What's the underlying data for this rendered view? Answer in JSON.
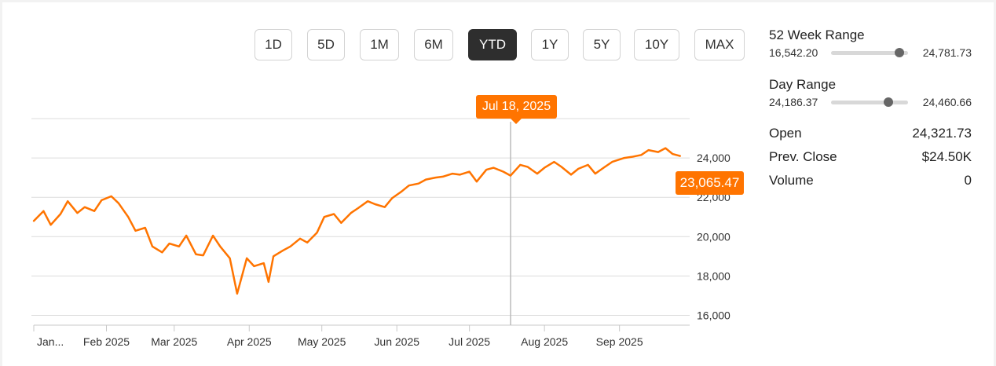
{
  "range_buttons": [
    {
      "label": "1D",
      "active": false
    },
    {
      "label": "5D",
      "active": false
    },
    {
      "label": "1M",
      "active": false
    },
    {
      "label": "6M",
      "active": false
    },
    {
      "label": "YTD",
      "active": true
    },
    {
      "label": "1Y",
      "active": false
    },
    {
      "label": "5Y",
      "active": false
    },
    {
      "label": "10Y",
      "active": false
    },
    {
      "label": "MAX",
      "active": false
    }
  ],
  "tooltip": {
    "date": "Jul 18, 2025"
  },
  "last_price_label": "23,065.47",
  "stats": {
    "week52": {
      "title": "52 Week Range",
      "low": "16,542.20",
      "high": "24,781.73",
      "position": 0.89
    },
    "day": {
      "title": "Day Range",
      "low": "24,186.37",
      "high": "24,460.66",
      "position": 0.74
    },
    "rows": [
      {
        "label": "Open",
        "value": "24,321.73"
      },
      {
        "label": "Prev. Close",
        "value": "$24.50K"
      },
      {
        "label": "Volume",
        "value": "0"
      }
    ]
  },
  "colors": {
    "line": "#ff7400",
    "active_button": "#2e2e2e"
  },
  "chart_data": {
    "type": "line",
    "x_tick_labels": [
      "Jan...",
      "Feb 2025",
      "Mar 2025",
      "Apr 2025",
      "May 2025",
      "Jun 2025",
      "Jul 2025",
      "Aug 2025",
      "Sep 2025"
    ],
    "y_tick_labels": [
      "16,000",
      "18,000",
      "20,000",
      "22,000",
      "24,000"
    ],
    "ylim": [
      15500,
      26000
    ],
    "crosshair_date": "2025-07-18",
    "series": [
      {
        "x": [
          "2025-01-02",
          "2025-01-06",
          "2025-01-09",
          "2025-01-13",
          "2025-01-16",
          "2025-01-20",
          "2025-01-23",
          "2025-01-27",
          "2025-01-30",
          "2025-02-03",
          "2025-02-06",
          "2025-02-10",
          "2025-02-13",
          "2025-02-17",
          "2025-02-20",
          "2025-02-24",
          "2025-02-27",
          "2025-03-03",
          "2025-03-06",
          "2025-03-10",
          "2025-03-13",
          "2025-03-17",
          "2025-03-20",
          "2025-03-24",
          "2025-03-27",
          "2025-03-31",
          "2025-04-03",
          "2025-04-07",
          "2025-04-09",
          "2025-04-11",
          "2025-04-15",
          "2025-04-18",
          "2025-04-22",
          "2025-04-25",
          "2025-04-29",
          "2025-05-02",
          "2025-05-06",
          "2025-05-09",
          "2025-05-13",
          "2025-05-16",
          "2025-05-20",
          "2025-05-23",
          "2025-05-27",
          "2025-05-30",
          "2025-06-03",
          "2025-06-06",
          "2025-06-10",
          "2025-06-13",
          "2025-06-17",
          "2025-06-20",
          "2025-06-24",
          "2025-06-27",
          "2025-07-01",
          "2025-07-04",
          "2025-07-08",
          "2025-07-11",
          "2025-07-15",
          "2025-07-18",
          "2025-07-22",
          "2025-07-25",
          "2025-07-29",
          "2025-08-01",
          "2025-08-05",
          "2025-08-08",
          "2025-08-12",
          "2025-08-15",
          "2025-08-19",
          "2025-08-22",
          "2025-08-26",
          "2025-08-29",
          "2025-09-03",
          "2025-09-06",
          "2025-09-10",
          "2025-09-13",
          "2025-09-17",
          "2025-09-20",
          "2025-09-23",
          "2025-09-26"
        ],
        "values": [
          20800,
          21300,
          20600,
          21150,
          21800,
          21200,
          21500,
          21300,
          21850,
          22050,
          21700,
          21000,
          20300,
          20450,
          19500,
          19200,
          19650,
          19500,
          20050,
          19100,
          19050,
          20050,
          19500,
          18900,
          17100,
          18900,
          18500,
          18650,
          17700,
          19000,
          19300,
          19500,
          19900,
          19700,
          20200,
          21000,
          21150,
          20700,
          21200,
          21450,
          21800,
          21650,
          21500,
          21950,
          22300,
          22600,
          22700,
          22900,
          23000,
          23050,
          23200,
          23150,
          23300,
          22800,
          23400,
          23500,
          23300,
          23100,
          23650,
          23550,
          23200,
          23500,
          23800,
          23550,
          23150,
          23450,
          23650,
          23200,
          23550,
          23800,
          24000,
          24050,
          24150,
          24400,
          24300,
          24500,
          24200,
          24100
        ]
      }
    ]
  }
}
